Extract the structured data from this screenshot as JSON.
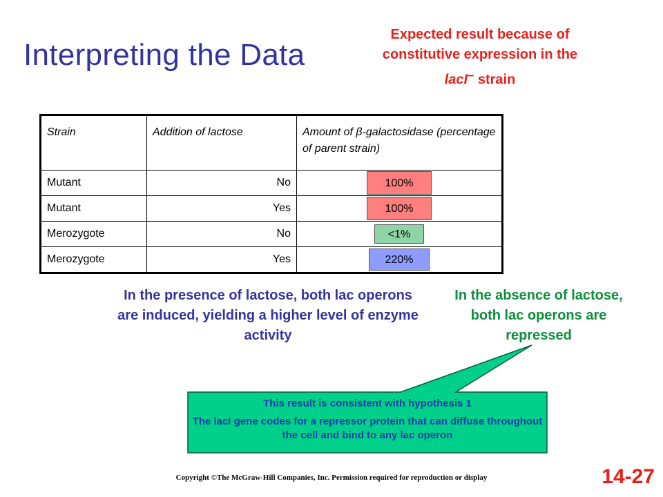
{
  "title": "Interpreting the Data",
  "notes": {
    "expected_line1": "Expected result because of",
    "expected_line2": "constitutive expression in the",
    "expected_gene": "lacI",
    "expected_gene_sup": "–",
    "expected_tail": " strain",
    "presence": "In the presence of lactose, both lac operons are induced, yielding a higher level of enzyme activity",
    "absence": "In the absence of lactose, both lac operons are repressed"
  },
  "table": {
    "headers": [
      "Strain",
      "Addition of lactose",
      "Amount of β-galactosidase (percentage of parent strain)"
    ],
    "rows": [
      {
        "strain": "Mutant",
        "lactose": "No",
        "amount": "100%"
      },
      {
        "strain": "Mutant",
        "lactose": "Yes",
        "amount": "100%"
      },
      {
        "strain": "Merozygote",
        "lactose": "No",
        "amount": "<1%"
      },
      {
        "strain": "Merozygote",
        "lactose": "Yes",
        "amount": "220%"
      }
    ]
  },
  "callout": {
    "line1": "This result is consistent with hypothesis 1",
    "line2": "The lacI gene codes for a repressor protein that can diffuse throughout the cell and bind to any lac operon"
  },
  "copyright": "Copyright ©The McGraw-Hill Companies, Inc. Permission required for reproduction or display",
  "slide_number": "14-27",
  "colors": {
    "title": "#3333a0",
    "red_note": "#e8201a",
    "green_note": "#0b8e3a",
    "callout_fill": "#00d08a",
    "red_box": "#ff7f7f",
    "green_box": "#8fd4a6",
    "blue_box": "#8c9cff"
  }
}
